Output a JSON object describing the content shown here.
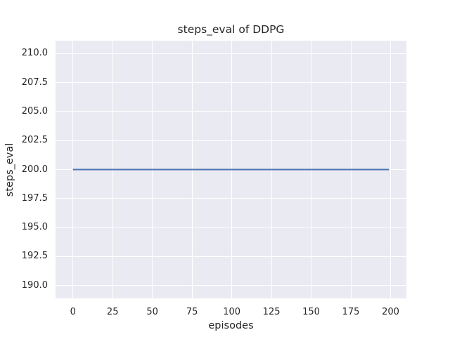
{
  "chart_data": {
    "type": "line",
    "title": "steps_eval of DDPG",
    "xlabel": "episodes",
    "ylabel": "steps_eval",
    "xlim": [
      -10.95,
      209.95
    ],
    "ylim": [
      188.9,
      211.1
    ],
    "xticks": [
      0,
      25,
      50,
      75,
      100,
      125,
      150,
      175,
      200
    ],
    "xtick_labels": [
      "0",
      "25",
      "50",
      "75",
      "100",
      "125",
      "150",
      "175",
      "200"
    ],
    "yticks": [
      190.0,
      192.5,
      195.0,
      197.5,
      200.0,
      202.5,
      205.0,
      207.5,
      210.0
    ],
    "ytick_labels": [
      "190.0",
      "192.5",
      "195.0",
      "197.5",
      "200.0",
      "202.5",
      "205.0",
      "207.5",
      "210.0"
    ],
    "grid": true,
    "legend": "none",
    "series": [
      {
        "name": "DDPG steps_eval",
        "color": "#4c72b0",
        "x": [
          0,
          199
        ],
        "y": [
          200,
          200
        ]
      }
    ],
    "style": {
      "figure_background": "#ffffff",
      "plot_background": "#eaeaf2",
      "grid_color": "#ffffff",
      "text_color": "#262626",
      "line_width": 2
    }
  }
}
